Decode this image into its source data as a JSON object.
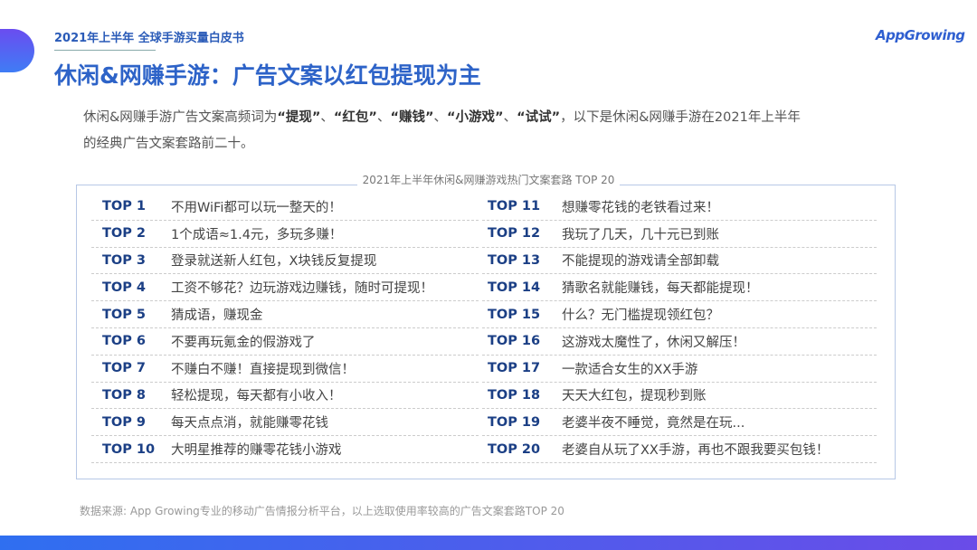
{
  "header": {
    "report_title": "2021年上半年 全球手游买量白皮书",
    "logo": "AppGrowing"
  },
  "title": "休闲&网赚手游：广告文案以红包提现为主",
  "intro": {
    "prefix": "休闲&网赚手游广告文案高频词为",
    "keywords": [
      "“提现”",
      "“红包”",
      "“赚钱”",
      "“小游戏”",
      "“试试”"
    ],
    "separator": "、",
    "suffix_line1": "，以下是休闲&网赚手游在2021年上半年",
    "line2": "的经典广告文案套路前二十。"
  },
  "table": {
    "caption": "2021年上半年休闲&网赚游戏热门文案套路 TOP 20",
    "rows": [
      {
        "rank": "TOP 1",
        "text": "不用WiFi都可以玩一整天的！"
      },
      {
        "rank": "TOP 2",
        "text": "1个成语≈1.4元，多玩多赚！"
      },
      {
        "rank": "TOP 3",
        "text": "登录就送新人红包，X块钱反复提现"
      },
      {
        "rank": "TOP 4",
        "text": "工资不够花？边玩游戏边赚钱，随时可提现！"
      },
      {
        "rank": "TOP 5",
        "text": "猜成语，赚现金"
      },
      {
        "rank": "TOP 6",
        "text": "不要再玩氪金的假游戏了"
      },
      {
        "rank": "TOP 7",
        "text": "不赚白不赚！直接提现到微信！"
      },
      {
        "rank": "TOP 8",
        "text": "轻松提现，每天都有小收入！"
      },
      {
        "rank": "TOP 9",
        "text": "每天点点消，就能赚零花钱"
      },
      {
        "rank": "TOP 10",
        "text": "大明星推荐的赚零花钱小游戏"
      },
      {
        "rank": "TOP 11",
        "text": "想赚零花钱的老铁看过来！"
      },
      {
        "rank": "TOP 12",
        "text": "我玩了几天，几十元已到账"
      },
      {
        "rank": "TOP 13",
        "text": "不能提现的游戏请全部卸载"
      },
      {
        "rank": "TOP 14",
        "text": "猜歌名就能赚钱，每天都能提现！"
      },
      {
        "rank": "TOP 15",
        "text": "什么？无门槛提现领红包？"
      },
      {
        "rank": "TOP 16",
        "text": "这游戏太魔性了，休闲又解压！"
      },
      {
        "rank": "TOP 17",
        "text": "一款适合女生的XX手游"
      },
      {
        "rank": "TOP 18",
        "text": "天天大红包，提现秒到账"
      },
      {
        "rank": "TOP 19",
        "text": "老婆半夜不睡觉，竟然是在玩..."
      },
      {
        "rank": "TOP 20",
        "text": "老婆自从玩了XX手游，再也不跟我要买包钱！"
      }
    ]
  },
  "footer": "数据来源: App Growing专业的移动广告情报分析平台，以上选取使用率较高的广告文案套路TOP 20",
  "colors": {
    "accent": "#2d63c8",
    "rank": "#1b3f85"
  }
}
